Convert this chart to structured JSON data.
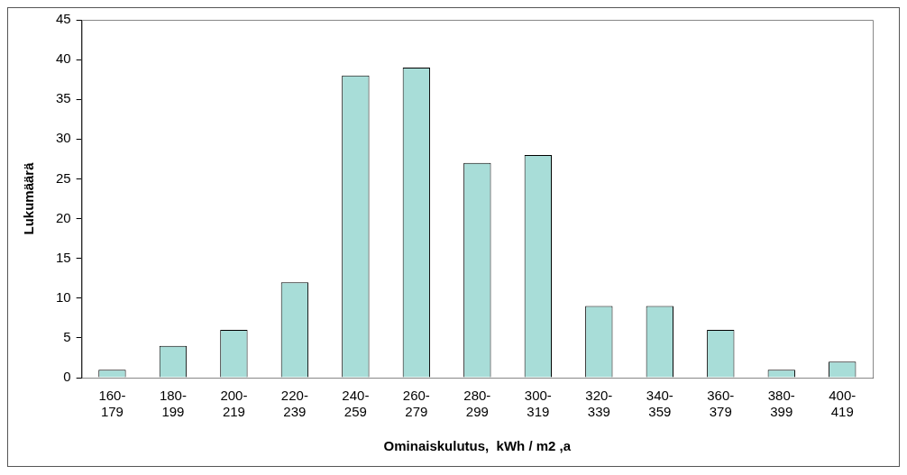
{
  "chart_data": {
    "type": "bar",
    "xlabel": "Ominaiskulutus,  kWh / m2 ,a",
    "ylabel": "Lukumäärä",
    "categories": [
      "160-179",
      "180-199",
      "200-219",
      "220-239",
      "240-259",
      "260-279",
      "280-299",
      "300-319",
      "320-339",
      "340-359",
      "360-379",
      "380-399",
      "400-419"
    ],
    "values": [
      1,
      4,
      6,
      12,
      38,
      39,
      27,
      28,
      9,
      9,
      6,
      1,
      2
    ],
    "color": "#a8ddd8",
    "ylim": [
      0,
      45
    ],
    "yticks": [
      0,
      5,
      10,
      15,
      20,
      25,
      30,
      35,
      40,
      45
    ],
    "grid": false,
    "legend": false
  }
}
